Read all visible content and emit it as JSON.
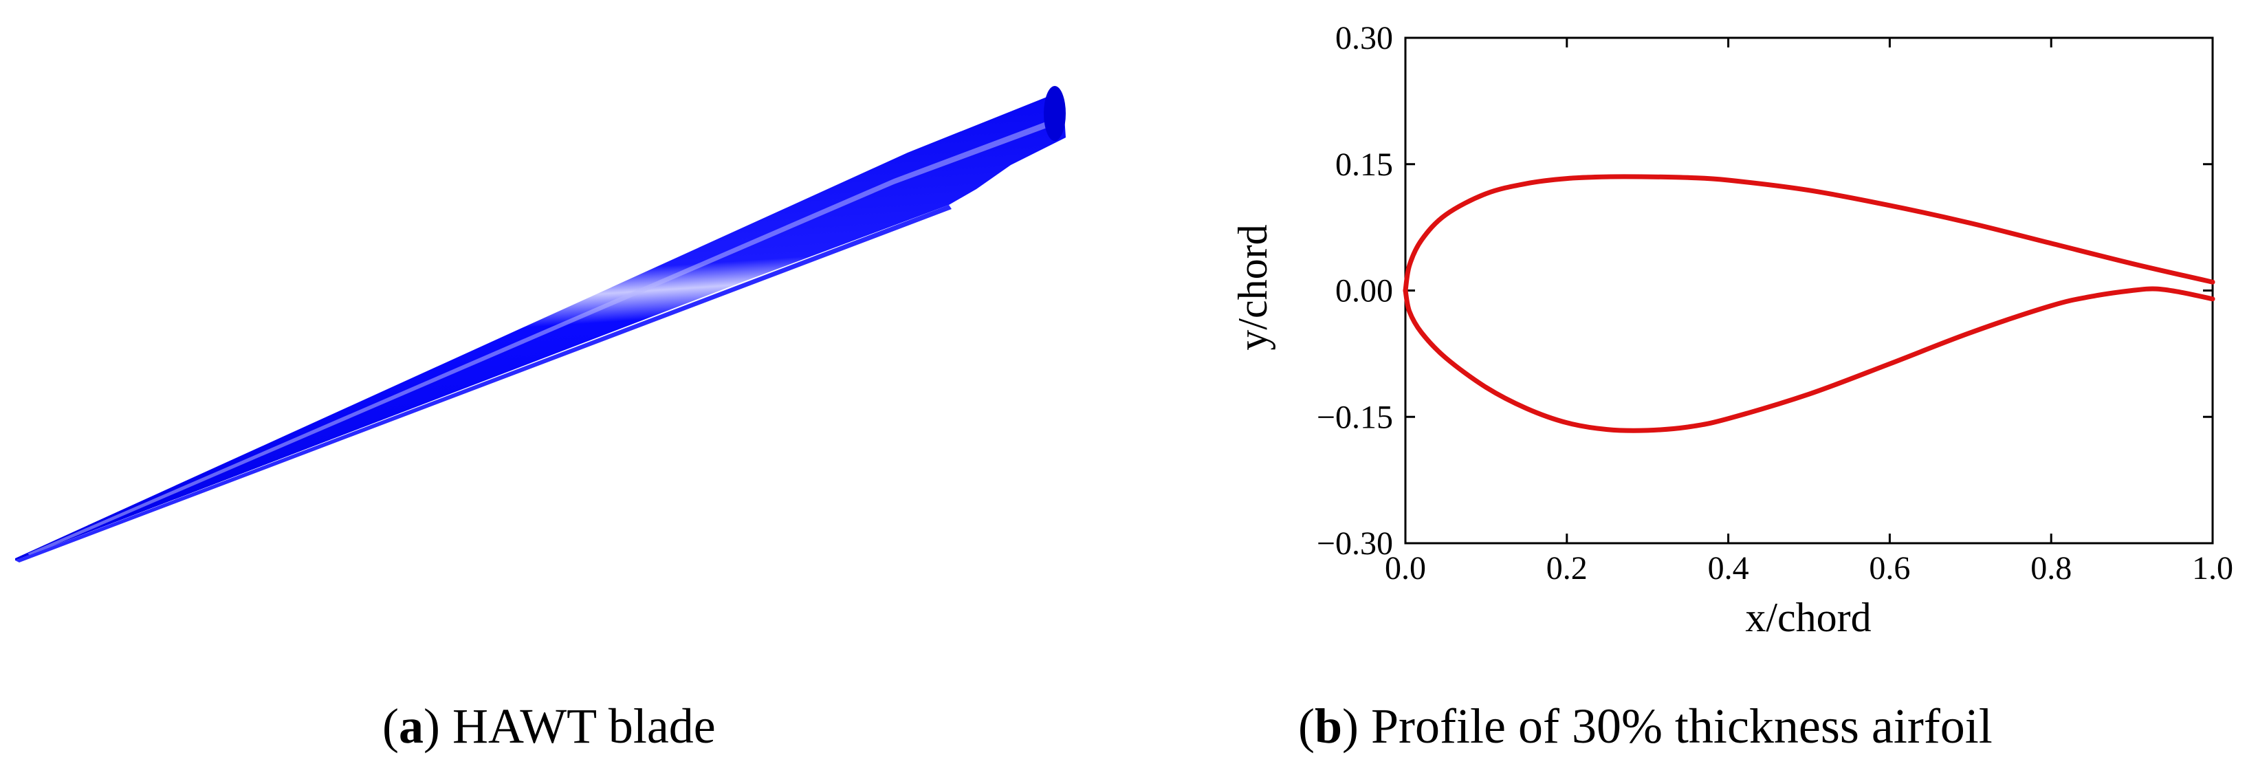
{
  "figure": {
    "panel_a": {
      "caption_letter": "a",
      "caption_text": "HAWT blade",
      "blade_color": "#0000ff"
    },
    "panel_b": {
      "caption_letter": "b",
      "caption_text": "Profile of 30% thickness airfoil"
    }
  },
  "chart_data": {
    "type": "line",
    "xlabel": "x/chord",
    "ylabel": "y/chord",
    "xlim": [
      0.0,
      1.0
    ],
    "ylim": [
      -0.3,
      0.3
    ],
    "xticks": [
      "0.0",
      "0.2",
      "0.4",
      "0.6",
      "0.8",
      "1.0"
    ],
    "yticks": [
      "0.30",
      "0.15",
      "0.00",
      "−0.15",
      "−0.30"
    ],
    "grid": false,
    "line_color": "#dd1111",
    "series": [
      {
        "x": [
          0.0,
          0.005,
          0.02,
          0.05,
          0.1,
          0.15,
          0.2,
          0.25,
          0.3,
          0.35,
          0.4,
          0.5,
          0.6,
          0.7,
          0.8,
          0.9,
          1.0
        ],
        "y": [
          0.0,
          0.03,
          0.06,
          0.09,
          0.115,
          0.127,
          0.133,
          0.135,
          0.135,
          0.134,
          0.131,
          0.119,
          0.101,
          0.08,
          0.056,
          0.032,
          0.01
        ]
      },
      {
        "x": [
          0.0,
          0.005,
          0.02,
          0.05,
          0.1,
          0.15,
          0.2,
          0.25,
          0.3,
          0.35,
          0.4,
          0.5,
          0.6,
          0.7,
          0.8,
          0.85,
          0.9,
          0.93,
          0.96,
          1.0
        ],
        "y": [
          0.0,
          -0.025,
          -0.05,
          -0.08,
          -0.115,
          -0.14,
          -0.157,
          -0.165,
          -0.166,
          -0.162,
          -0.152,
          -0.123,
          -0.087,
          -0.05,
          -0.018,
          -0.007,
          0.0,
          0.002,
          -0.002,
          -0.01
        ]
      }
    ]
  }
}
